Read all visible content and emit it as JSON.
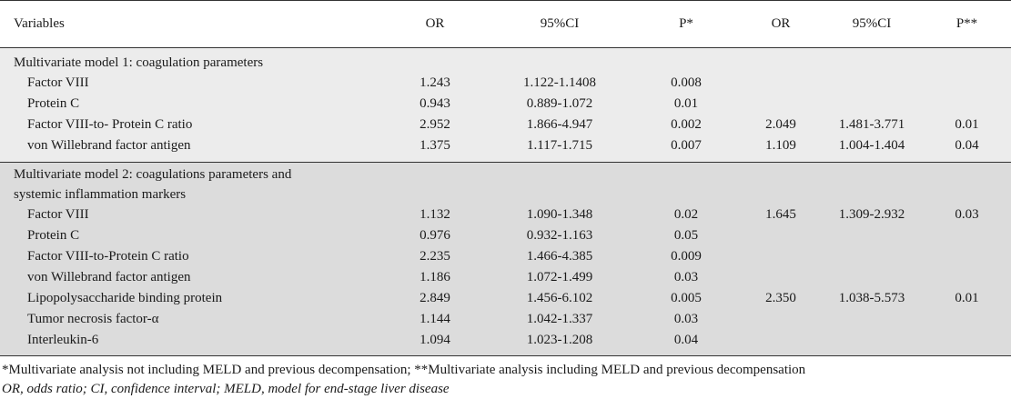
{
  "headers": [
    "Variables",
    "OR",
    "95%CI",
    "P*",
    "OR",
    "95%CI",
    "P**"
  ],
  "model1": {
    "title": "Multivariate model 1: coagulation parameters",
    "rows": [
      [
        "Factor VIII",
        "1.243",
        "1.122-1.1408",
        "0.008",
        "",
        "",
        ""
      ],
      [
        "Protein C",
        "0.943",
        "0.889-1.072",
        "0.01",
        "",
        "",
        ""
      ],
      [
        "Factor VIII-to- Protein C ratio",
        "2.952",
        "1.866-4.947",
        "0.002",
        "2.049",
        "1.481-3.771",
        "0.01"
      ],
      [
        "von Willebrand factor antigen",
        "1.375",
        "1.117-1.715",
        "0.007",
        "1.109",
        "1.004-1.404",
        "0.04"
      ]
    ]
  },
  "model2": {
    "title_line1": "Multivariate model 2: coagulations parameters and",
    "title_line2": "systemic inflammation markers",
    "rows": [
      [
        "Factor VIII",
        "1.132",
        "1.090-1.348",
        "0.02",
        "1.645",
        "1.309-2.932",
        "0.03"
      ],
      [
        "Protein C",
        "0.976",
        "0.932-1.163",
        "0.05",
        "",
        "",
        ""
      ],
      [
        "Factor VIII-to-Protein C ratio",
        "2.235",
        "1.466-4.385",
        "0.009",
        "",
        "",
        ""
      ],
      [
        "von Willebrand factor antigen",
        "1.186",
        "1.072-1.499",
        "0.03",
        "",
        "",
        ""
      ],
      [
        "Lipopolysaccharide binding protein",
        "2.849",
        "1.456-6.102",
        "0.005",
        "2.350",
        "1.038-5.573",
        "0.01"
      ],
      [
        "Tumor necrosis factor-α",
        "1.144",
        "1.042-1.337",
        "0.03",
        "",
        "",
        ""
      ],
      [
        "Interleukin-6",
        "1.094",
        "1.023-1.208",
        "0.04",
        "",
        "",
        ""
      ]
    ]
  },
  "footnote": "*Multivariate analysis not including MELD and previous decompensation; **Multivariate analysis including MELD and previous decompensation",
  "abbreviations": "OR, odds ratio; CI, confidence interval; MELD, model for end-stage liver disease"
}
